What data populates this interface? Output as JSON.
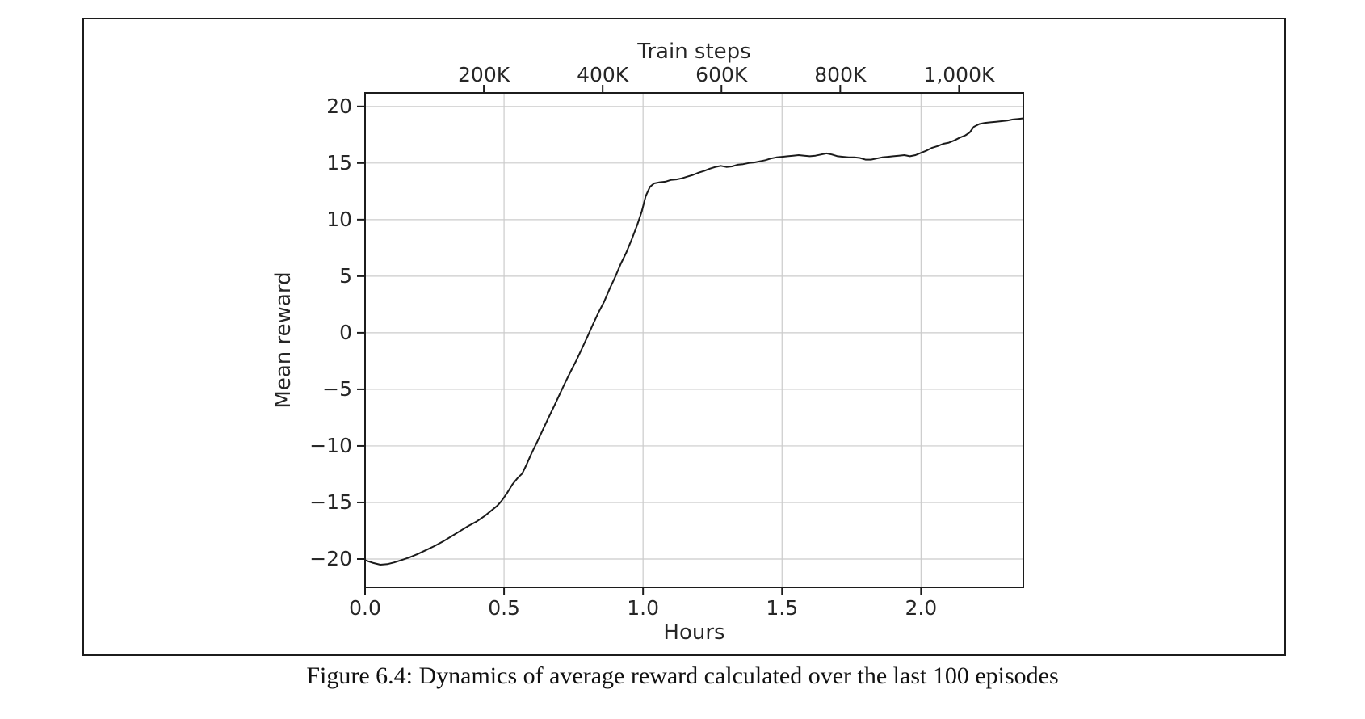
{
  "figure": {
    "caption": "Figure 6.4: Dynamics of average reward calculated over the last 100 episodes"
  },
  "colors": {
    "line": "#1b1b1b",
    "grid": "#cbcbcb",
    "spine": "#1c1c1c",
    "text": "#262626"
  },
  "chart_data": {
    "type": "line",
    "title": "",
    "grid": true,
    "legend": "none",
    "x_axis": {
      "label": "Hours",
      "range": [
        0,
        2.368
      ],
      "ticks": [
        0.0,
        0.5,
        1.0,
        1.5,
        2.0
      ],
      "tick_labels": [
        "0.0",
        "0.5",
        "1.0",
        "1.5",
        "2.0"
      ]
    },
    "top_axis": {
      "label": "Train steps",
      "steps_per_hour": 468000,
      "ticks": [
        200000,
        400000,
        600000,
        800000,
        1000000
      ],
      "tick_labels": [
        "200K",
        "400K",
        "600K",
        "800K",
        "1,000K"
      ]
    },
    "y_axis": {
      "label": "Mean reward",
      "range": [
        -22.5,
        21.2
      ],
      "ticks": [
        20,
        15,
        10,
        5,
        0,
        -5,
        -10,
        -15,
        -20
      ],
      "tick_labels": [
        "20",
        "15",
        "10",
        "5",
        "0",
        "−5",
        "−10",
        "−15",
        "−20"
      ]
    },
    "series": [
      {
        "name": "mean reward (last 100 episodes)",
        "points": [
          [
            0.0,
            -20.1
          ],
          [
            0.03,
            -20.35
          ],
          [
            0.055,
            -20.5
          ],
          [
            0.08,
            -20.45
          ],
          [
            0.105,
            -20.3
          ],
          [
            0.13,
            -20.1
          ],
          [
            0.16,
            -19.85
          ],
          [
            0.19,
            -19.55
          ],
          [
            0.22,
            -19.2
          ],
          [
            0.25,
            -18.85
          ],
          [
            0.28,
            -18.45
          ],
          [
            0.31,
            -18.0
          ],
          [
            0.34,
            -17.55
          ],
          [
            0.37,
            -17.1
          ],
          [
            0.4,
            -16.7
          ],
          [
            0.43,
            -16.2
          ],
          [
            0.455,
            -15.7
          ],
          [
            0.475,
            -15.3
          ],
          [
            0.49,
            -14.9
          ],
          [
            0.51,
            -14.2
          ],
          [
            0.53,
            -13.4
          ],
          [
            0.55,
            -12.8
          ],
          [
            0.565,
            -12.45
          ],
          [
            0.58,
            -11.7
          ],
          [
            0.6,
            -10.6
          ],
          [
            0.62,
            -9.6
          ],
          [
            0.64,
            -8.55
          ],
          [
            0.66,
            -7.5
          ],
          [
            0.68,
            -6.5
          ],
          [
            0.7,
            -5.45
          ],
          [
            0.72,
            -4.4
          ],
          [
            0.74,
            -3.4
          ],
          [
            0.76,
            -2.45
          ],
          [
            0.78,
            -1.4
          ],
          [
            0.8,
            -0.35
          ],
          [
            0.82,
            0.75
          ],
          [
            0.84,
            1.8
          ],
          [
            0.86,
            2.75
          ],
          [
            0.88,
            3.9
          ],
          [
            0.9,
            4.95
          ],
          [
            0.92,
            6.1
          ],
          [
            0.94,
            7.1
          ],
          [
            0.96,
            8.3
          ],
          [
            0.98,
            9.6
          ],
          [
            0.995,
            10.7
          ],
          [
            1.01,
            12.1
          ],
          [
            1.025,
            12.9
          ],
          [
            1.04,
            13.2
          ],
          [
            1.06,
            13.3
          ],
          [
            1.08,
            13.35
          ],
          [
            1.1,
            13.5
          ],
          [
            1.12,
            13.55
          ],
          [
            1.14,
            13.65
          ],
          [
            1.16,
            13.8
          ],
          [
            1.18,
            13.95
          ],
          [
            1.2,
            14.15
          ],
          [
            1.22,
            14.3
          ],
          [
            1.24,
            14.5
          ],
          [
            1.26,
            14.65
          ],
          [
            1.28,
            14.75
          ],
          [
            1.3,
            14.65
          ],
          [
            1.32,
            14.7
          ],
          [
            1.34,
            14.85
          ],
          [
            1.36,
            14.9
          ],
          [
            1.38,
            15.0
          ],
          [
            1.4,
            15.05
          ],
          [
            1.42,
            15.15
          ],
          [
            1.44,
            15.25
          ],
          [
            1.46,
            15.4
          ],
          [
            1.48,
            15.5
          ],
          [
            1.5,
            15.55
          ],
          [
            1.52,
            15.6
          ],
          [
            1.54,
            15.65
          ],
          [
            1.56,
            15.7
          ],
          [
            1.58,
            15.65
          ],
          [
            1.6,
            15.6
          ],
          [
            1.62,
            15.65
          ],
          [
            1.64,
            15.75
          ],
          [
            1.66,
            15.85
          ],
          [
            1.68,
            15.75
          ],
          [
            1.7,
            15.6
          ],
          [
            1.72,
            15.55
          ],
          [
            1.74,
            15.5
          ],
          [
            1.76,
            15.5
          ],
          [
            1.78,
            15.45
          ],
          [
            1.8,
            15.3
          ],
          [
            1.82,
            15.3
          ],
          [
            1.84,
            15.4
          ],
          [
            1.86,
            15.5
          ],
          [
            1.88,
            15.55
          ],
          [
            1.9,
            15.6
          ],
          [
            1.92,
            15.65
          ],
          [
            1.94,
            15.7
          ],
          [
            1.96,
            15.6
          ],
          [
            1.98,
            15.7
          ],
          [
            2.0,
            15.9
          ],
          [
            2.02,
            16.1
          ],
          [
            2.04,
            16.35
          ],
          [
            2.06,
            16.5
          ],
          [
            2.08,
            16.7
          ],
          [
            2.1,
            16.8
          ],
          [
            2.12,
            17.0
          ],
          [
            2.14,
            17.25
          ],
          [
            2.16,
            17.45
          ],
          [
            2.175,
            17.7
          ],
          [
            2.19,
            18.2
          ],
          [
            2.21,
            18.45
          ],
          [
            2.23,
            18.55
          ],
          [
            2.25,
            18.6
          ],
          [
            2.27,
            18.65
          ],
          [
            2.29,
            18.7
          ],
          [
            2.31,
            18.75
          ],
          [
            2.33,
            18.85
          ],
          [
            2.35,
            18.9
          ],
          [
            2.368,
            18.95
          ]
        ]
      }
    ]
  }
}
